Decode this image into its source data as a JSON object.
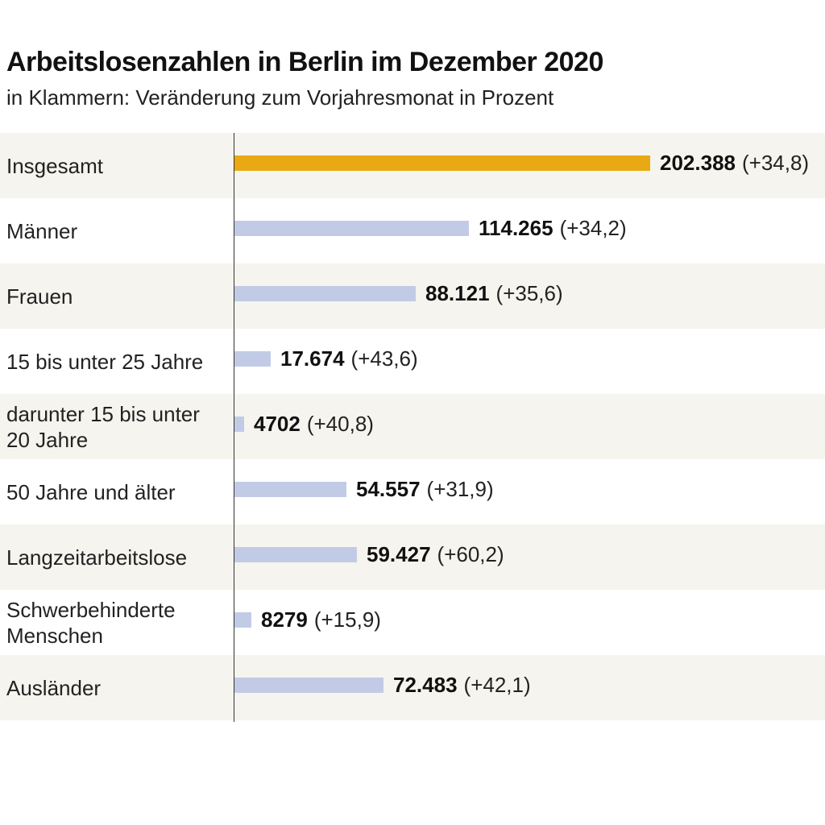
{
  "title": "Arbeitslosenzahlen in Berlin im Dezember 2020",
  "subtitle": "in Klammern: Veränderung zum Vorjahresmonat in Prozent",
  "colors": {
    "highlight": "#e9a913",
    "bar": "#c2cbe6",
    "row_shade": "#f5f4ee"
  },
  "chart_data": {
    "type": "bar",
    "orientation": "horizontal",
    "categories": [
      "Insgesamt",
      "Männer",
      "Frauen",
      "15 bis unter 25 Jahre",
      "darunter 15 bis unter 20 Jahre",
      "50 Jahre und älter",
      "Langzeitarbeitslose",
      "Schwerbehinderte Menschen",
      "Ausländer"
    ],
    "values": [
      202388,
      114265,
      88121,
      17674,
      4702,
      54557,
      59427,
      8279,
      72483
    ],
    "value_labels": [
      "202.388",
      "114.265",
      "88.121",
      "17.674",
      "4702",
      "54.557",
      "59.427",
      "8279",
      "72.483"
    ],
    "change_labels": [
      "(+34,8)",
      "(+34,2)",
      "(+35,6)",
      "(+43,6)",
      "(+40,8)",
      "(+31,9)",
      "(+60,2)",
      "(+15,9)",
      "(+42,1)"
    ],
    "change_percent": [
      34.8,
      34.2,
      35.6,
      43.6,
      40.8,
      31.9,
      60.2,
      15.9,
      42.1
    ],
    "highlighted_category": "Insgesamt",
    "xlim": [
      0,
      202388
    ],
    "grid": false,
    "legend": "none",
    "title": "Arbeitslosenzahlen in Berlin im Dezember 2020",
    "subtitle": "in Klammern: Veränderung zum Vorjahresmonat in Prozent"
  }
}
